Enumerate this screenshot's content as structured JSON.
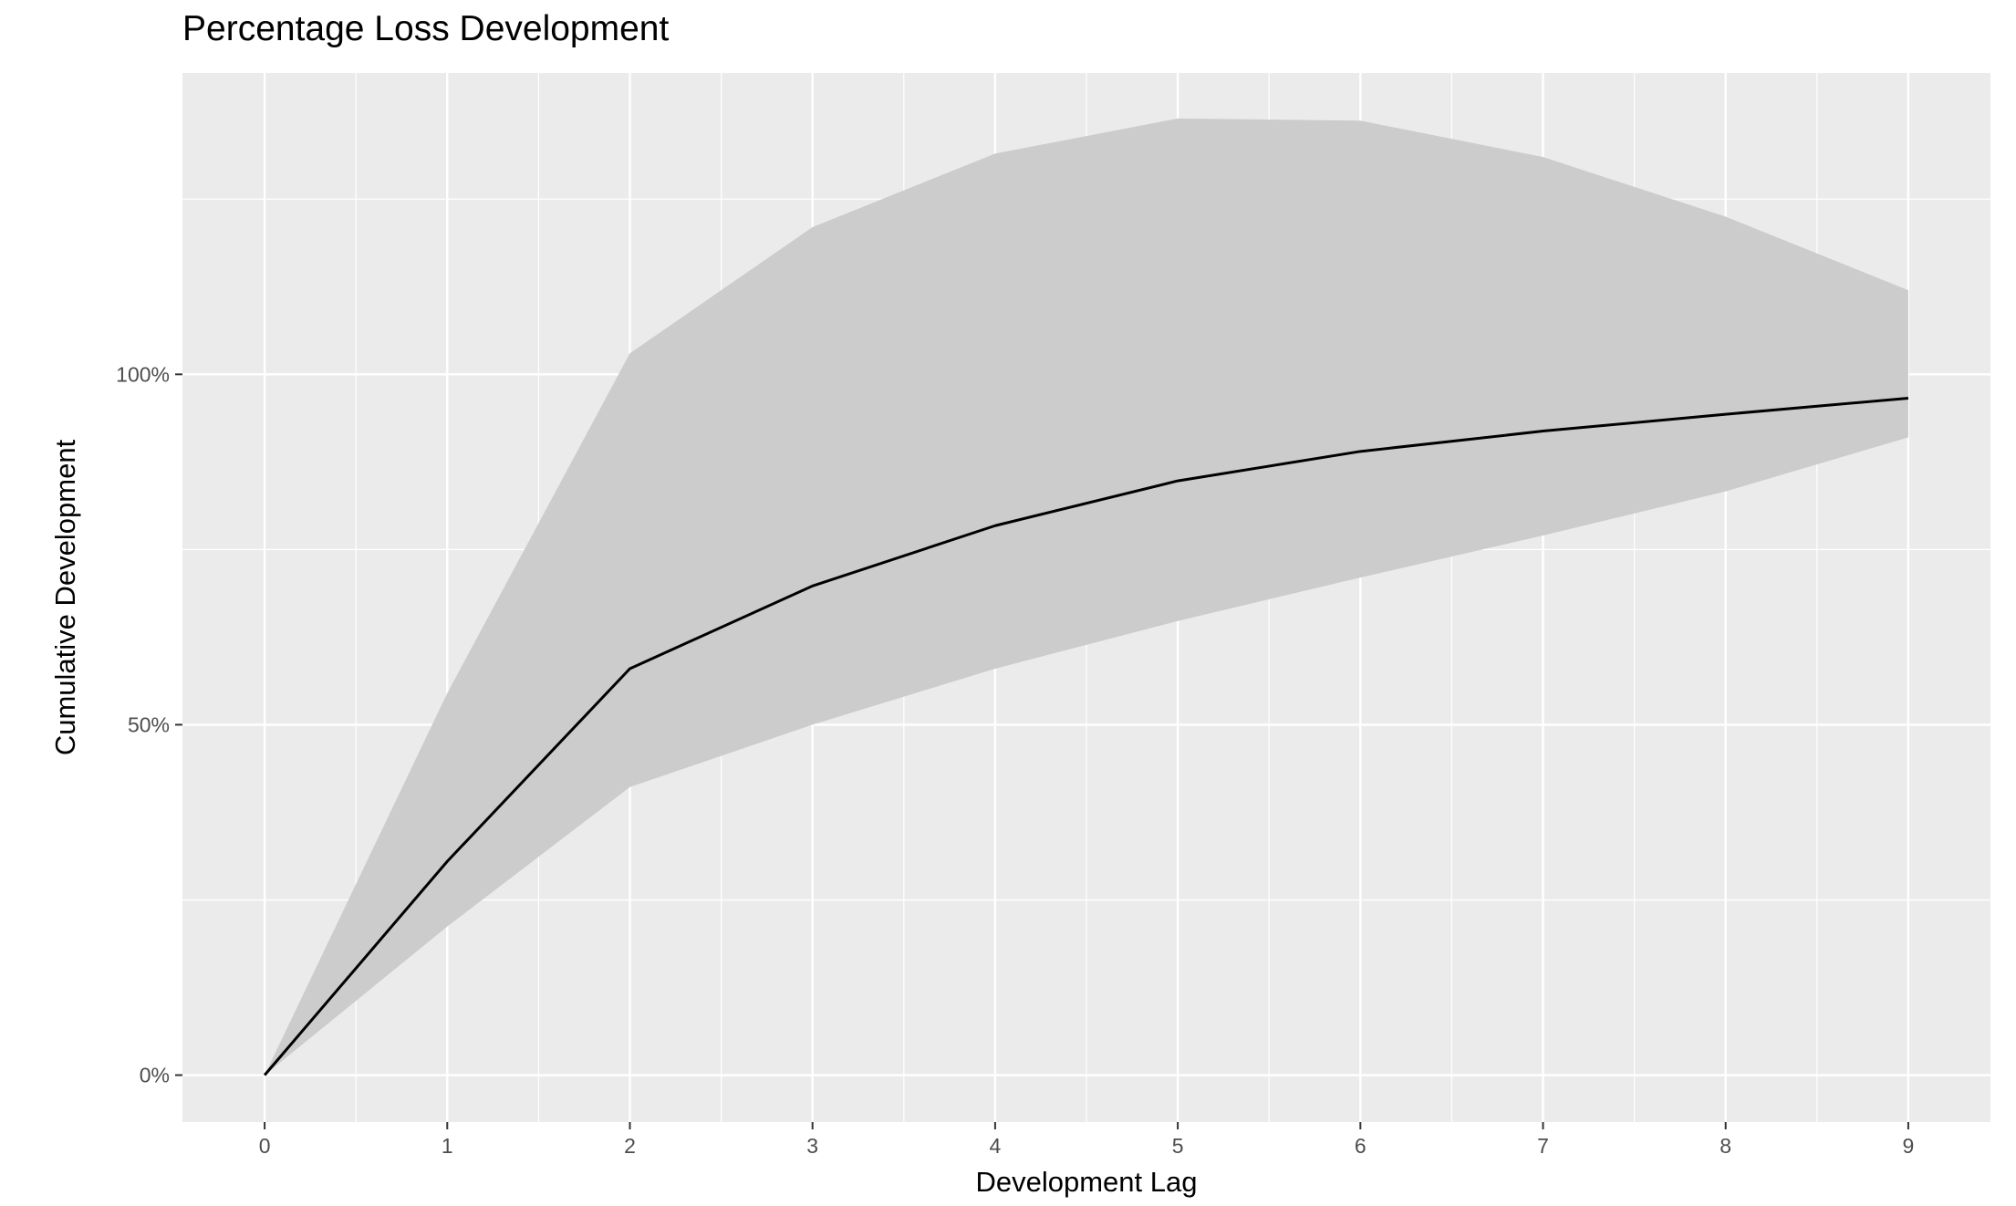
{
  "chart_data": {
    "type": "line",
    "title": "Percentage Loss Development",
    "xlabel": "Development Lag",
    "ylabel": "Cumulative Development",
    "x": [
      0,
      1,
      2,
      3,
      4,
      5,
      6,
      7,
      8,
      9
    ],
    "x_tick_labels": [
      "0",
      "1",
      "2",
      "3",
      "4",
      "5",
      "6",
      "7",
      "8",
      "9"
    ],
    "y_ticks": [
      0,
      0.5,
      1.0
    ],
    "y_tick_labels": [
      "0%",
      "50%",
      "100%"
    ],
    "xlim": [
      -0.45,
      9.45
    ],
    "ylim": [
      -0.067,
      1.43
    ],
    "grid": true,
    "series": [
      {
        "values": [
          0,
          0.305,
          0.58,
          0.698,
          0.784,
          0.848,
          0.89,
          0.919,
          0.943,
          0.966
        ]
      }
    ],
    "band": {
      "lower": [
        0,
        0.212,
        0.411,
        0.5,
        0.58,
        0.648,
        0.71,
        0.77,
        0.833,
        0.91
      ],
      "upper": [
        0,
        0.545,
        1.03,
        1.21,
        1.315,
        1.365,
        1.362,
        1.31,
        1.225,
        1.12
      ]
    },
    "colors": {
      "panel": "#ebebeb",
      "grid": "#ffffff",
      "band": "#cccccc",
      "line": "#000000",
      "tick_text": "#4d4d4d"
    }
  }
}
